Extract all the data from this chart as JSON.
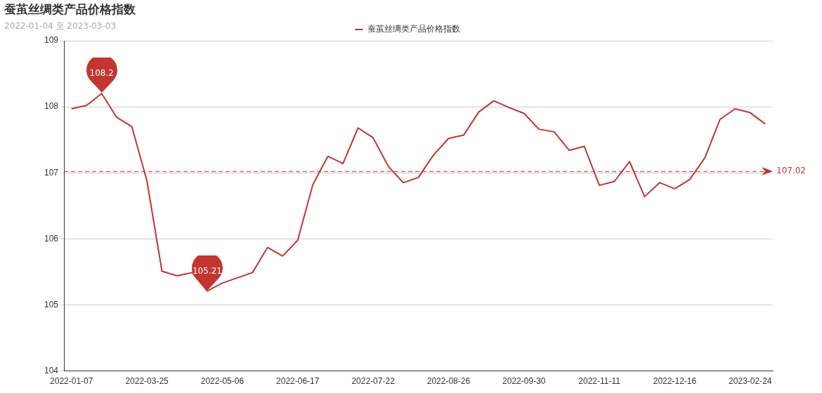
{
  "chart_data": {
    "type": "line",
    "title": "蚕茧丝绸类产品价格指数",
    "subtitle": "2022-01-04 至 2023-03-03",
    "categories": [
      "2022-01-07",
      null,
      null,
      null,
      null,
      "2022-03-25",
      null,
      null,
      null,
      null,
      "2022-05-06",
      null,
      null,
      null,
      null,
      "2022-06-17",
      null,
      null,
      null,
      null,
      "2022-07-22",
      null,
      null,
      null,
      null,
      "2022-08-26",
      null,
      null,
      null,
      null,
      "2022-09-30",
      null,
      null,
      null,
      null,
      "2022-11-11",
      null,
      null,
      null,
      null,
      "2022-12-16",
      null,
      null,
      null,
      null,
      "2023-02-24",
      null
    ],
    "series": [
      {
        "name": "蚕茧丝绸类产品价格指数",
        "color": "#c23531",
        "values": [
          107.97,
          108.02,
          108.2,
          107.84,
          107.7,
          106.88,
          105.51,
          105.44,
          105.49,
          105.21,
          105.33,
          105.41,
          105.49,
          105.87,
          105.74,
          105.98,
          106.82,
          107.25,
          107.14,
          107.68,
          107.53,
          107.1,
          106.85,
          106.93,
          107.27,
          107.52,
          107.57,
          107.92,
          108.09,
          107.99,
          107.9,
          107.66,
          107.62,
          107.34,
          107.4,
          106.81,
          106.87,
          107.17,
          106.64,
          106.85,
          106.76,
          106.9,
          107.23,
          107.81,
          107.97,
          107.91,
          107.74
        ]
      }
    ],
    "ylim": [
      104,
      109
    ],
    "yticks": [
      104,
      105,
      106,
      107,
      108,
      109
    ],
    "grid": "y",
    "legend": "top",
    "marker": "none",
    "line_style": "solid",
    "ref_lines": [
      {
        "axis": "y",
        "value": 107.02,
        "label": "107.02",
        "color": "#c23531",
        "line_style": "dashed"
      }
    ],
    "annotations": [
      {
        "text": "108.2",
        "y": 108.2
      },
      {
        "text": "105.21",
        "y": 105.21
      }
    ]
  }
}
